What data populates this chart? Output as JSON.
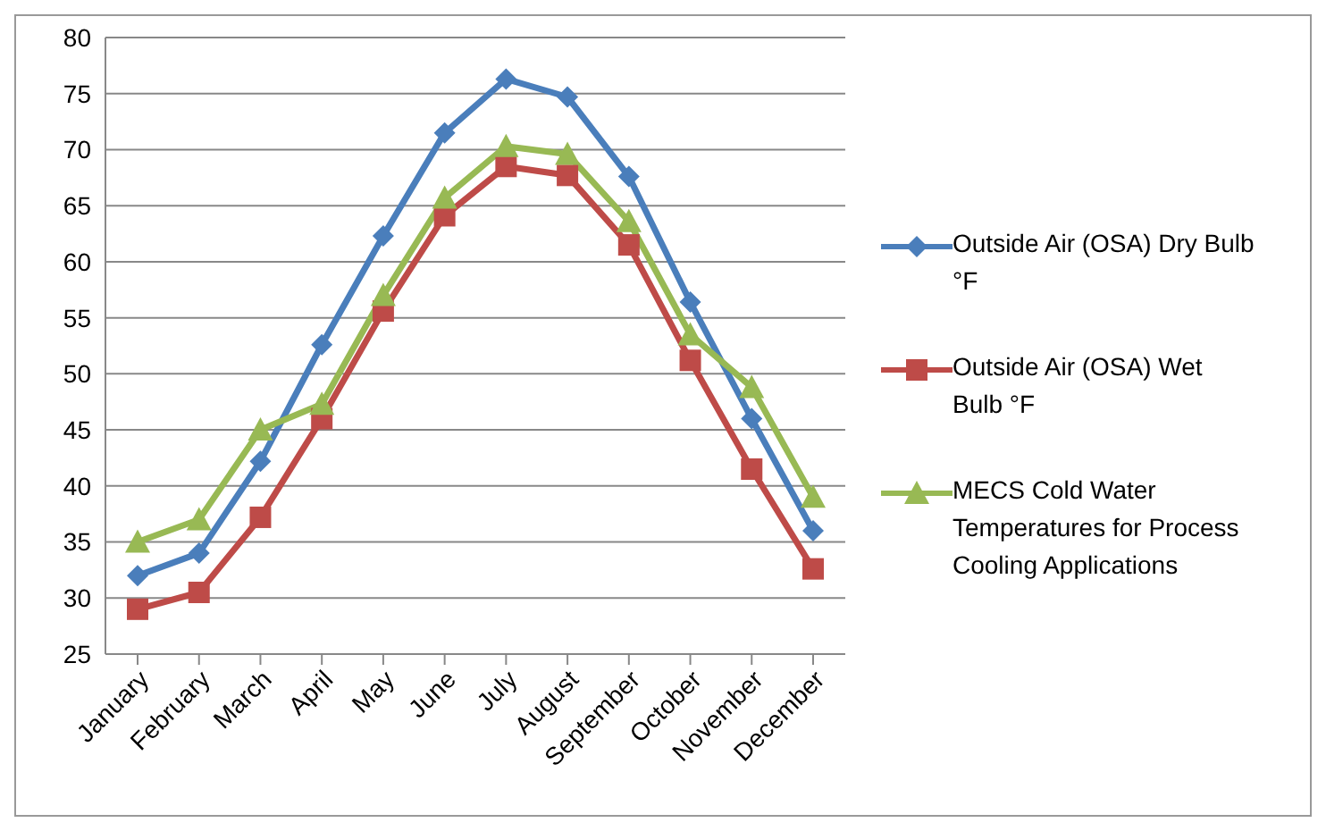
{
  "chart_data": {
    "type": "line",
    "categories": [
      "January",
      "February",
      "March",
      "April",
      "May",
      "June",
      "July",
      "August",
      "September",
      "October",
      "November",
      "December"
    ],
    "series": [
      {
        "name": "Outside Air (OSA) Dry Bulb °F",
        "color": "#4a7ebb",
        "marker": "diamond",
        "values": [
          32,
          34,
          42.2,
          52.6,
          62.3,
          71.5,
          76.3,
          74.7,
          67.6,
          56.4,
          46,
          36
        ]
      },
      {
        "name": "Outside Air (OSA) Wet Bulb °F",
        "color": "#be4b48",
        "marker": "square",
        "values": [
          29,
          30.5,
          37.2,
          46,
          55.6,
          64.1,
          68.5,
          67.7,
          61.5,
          51.2,
          41.5,
          32.6
        ]
      },
      {
        "name": "MECS Cold Water Temperatures for Process Cooling Applications",
        "color": "#98b954",
        "marker": "triangle",
        "values": [
          35,
          37,
          45,
          47.3,
          57,
          65.7,
          70.3,
          69.6,
          63.6,
          53.5,
          48.8,
          39
        ]
      }
    ],
    "ylim": [
      25,
      80
    ],
    "yticks": [
      25,
      30,
      35,
      40,
      45,
      50,
      55,
      60,
      65,
      70,
      75,
      80
    ],
    "grid": "y",
    "legend": "right"
  }
}
